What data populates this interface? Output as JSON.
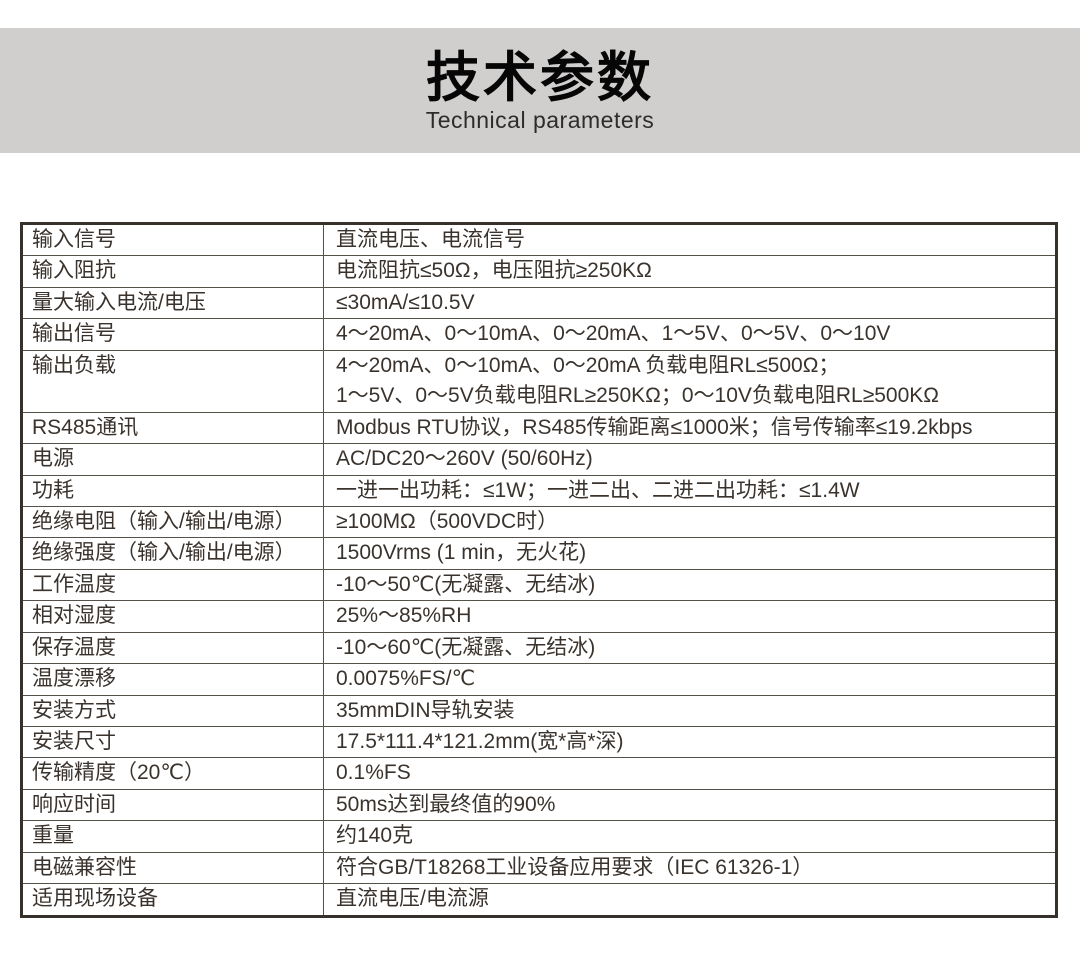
{
  "theme": {
    "page_background": "#ffffff",
    "band_color": "#d1cfce",
    "table_border_color": "#37312c",
    "grid_line_color": "#55504a",
    "text_color": "#3a332d",
    "title_color": "#060606"
  },
  "header": {
    "title": "技术参数",
    "subtitle": "Technical parameters"
  },
  "table": {
    "rows": [
      {
        "label": "输入信号",
        "values": [
          "直流电压、电流信号"
        ]
      },
      {
        "label": "输入阻抗",
        "values": [
          "电流阻抗≤50Ω，电压阻抗≥250KΩ"
        ]
      },
      {
        "label": "量大输入电流/电压",
        "values": [
          "≤30mA/≤10.5V"
        ]
      },
      {
        "label": "输出信号",
        "values": [
          "4～20mA、0～10mA、0～20mA、1～5V、0～5V、0～10V"
        ]
      },
      {
        "label": "输出负载",
        "values": [
          "4～20mA、0～10mA、0～20mA 负载电阻RL≤500Ω；",
          "1～5V、0～5V负载电阻RL≥250KΩ；0～10V负载电阻RL≥500KΩ"
        ]
      },
      {
        "label": "RS485通讯",
        "values": [
          "Modbus RTU协议，RS485传输距离≤1000米；信号传输率≤19.2kbps"
        ]
      },
      {
        "label": "电源",
        "values": [
          "AC/DC20～260V (50/60Hz)"
        ]
      },
      {
        "label": "功耗",
        "values": [
          "一进一出功耗：≤1W；一进二出、二进二出功耗：≤1.4W"
        ]
      },
      {
        "label": "绝缘电阻（输入/输出/电源）",
        "values": [
          "≥100MΩ（500VDC时）"
        ]
      },
      {
        "label": "绝缘强度（输入/输出/电源）",
        "values": [
          "1500Vrms (1 min，无火花)"
        ]
      },
      {
        "label": "工作温度",
        "values": [
          "-10～50℃(无凝露、无结冰)"
        ]
      },
      {
        "label": "相对湿度",
        "values": [
          "25%～85%RH"
        ]
      },
      {
        "label": "保存温度",
        "values": [
          "-10～60℃(无凝露、无结冰)"
        ]
      },
      {
        "label": "温度漂移",
        "values": [
          "0.0075%FS/℃"
        ]
      },
      {
        "label": "安装方式",
        "values": [
          "35mmDIN导轨安装"
        ]
      },
      {
        "label": "安装尺寸",
        "values": [
          "17.5*111.4*121.2mm(宽*高*深)"
        ]
      },
      {
        "label": "传输精度（20℃）",
        "values": [
          "0.1%FS"
        ]
      },
      {
        "label": "响应时间",
        "values": [
          "50ms达到最终值的90%"
        ]
      },
      {
        "label": "重量",
        "values": [
          "约140克"
        ]
      },
      {
        "label": "电磁兼容性",
        "values": [
          "符合GB/T18268工业设备应用要求（IEC 61326-1）"
        ]
      },
      {
        "label": "适用现场设备",
        "values": [
          "直流电压/电流源"
        ]
      }
    ]
  }
}
